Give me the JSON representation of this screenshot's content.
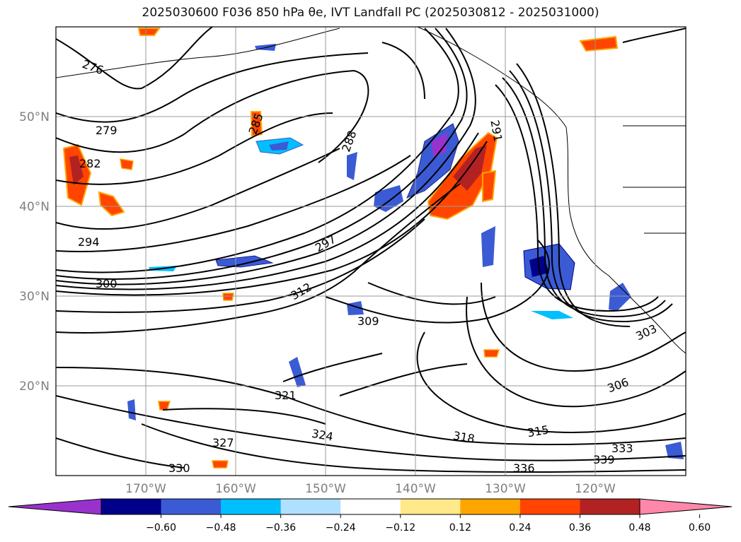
{
  "title": "2025030600 F036 850 hPa θe, IVT Landfall PC (2025030812 - 2025031000)",
  "map": {
    "lon_range": [
      -180,
      -110
    ],
    "lat_range": [
      10,
      60
    ],
    "lat_ticks": [
      {
        "value": 20,
        "label": "20°N"
      },
      {
        "value": 30,
        "label": "30°N"
      },
      {
        "value": 40,
        "label": "40°N"
      },
      {
        "value": 50,
        "label": "50°N"
      }
    ],
    "lon_ticks": [
      {
        "value": -170,
        "label": "170°W"
      },
      {
        "value": -160,
        "label": "160°W"
      },
      {
        "value": -150,
        "label": "150°W"
      },
      {
        "value": -140,
        "label": "140°W"
      },
      {
        "value": -130,
        "label": "130°W"
      },
      {
        "value": -120,
        "label": "120°W"
      }
    ],
    "grid": true
  },
  "contour_labels": [
    "276",
    "279",
    "282",
    "285",
    "288",
    "291",
    "294",
    "297",
    "300",
    "303",
    "306",
    "309",
    "312",
    "315",
    "318",
    "321",
    "324",
    "327",
    "330",
    "333",
    "336",
    "339"
  ],
  "colorbar": {
    "colors": [
      "#9932cc",
      "#00008b",
      "#3b5bd5",
      "#00bfff",
      "#b0e0ff",
      "#ffffff",
      "#ffe98a",
      "#ffa500",
      "#ff4500",
      "#b22222",
      "#ff88aa"
    ],
    "ticks": [
      "−0.60",
      "−0.48",
      "−0.36",
      "−0.24",
      "−0.12",
      "0.12",
      "0.24",
      "0.36",
      "0.48",
      "0.60"
    ],
    "extend": "both"
  }
}
